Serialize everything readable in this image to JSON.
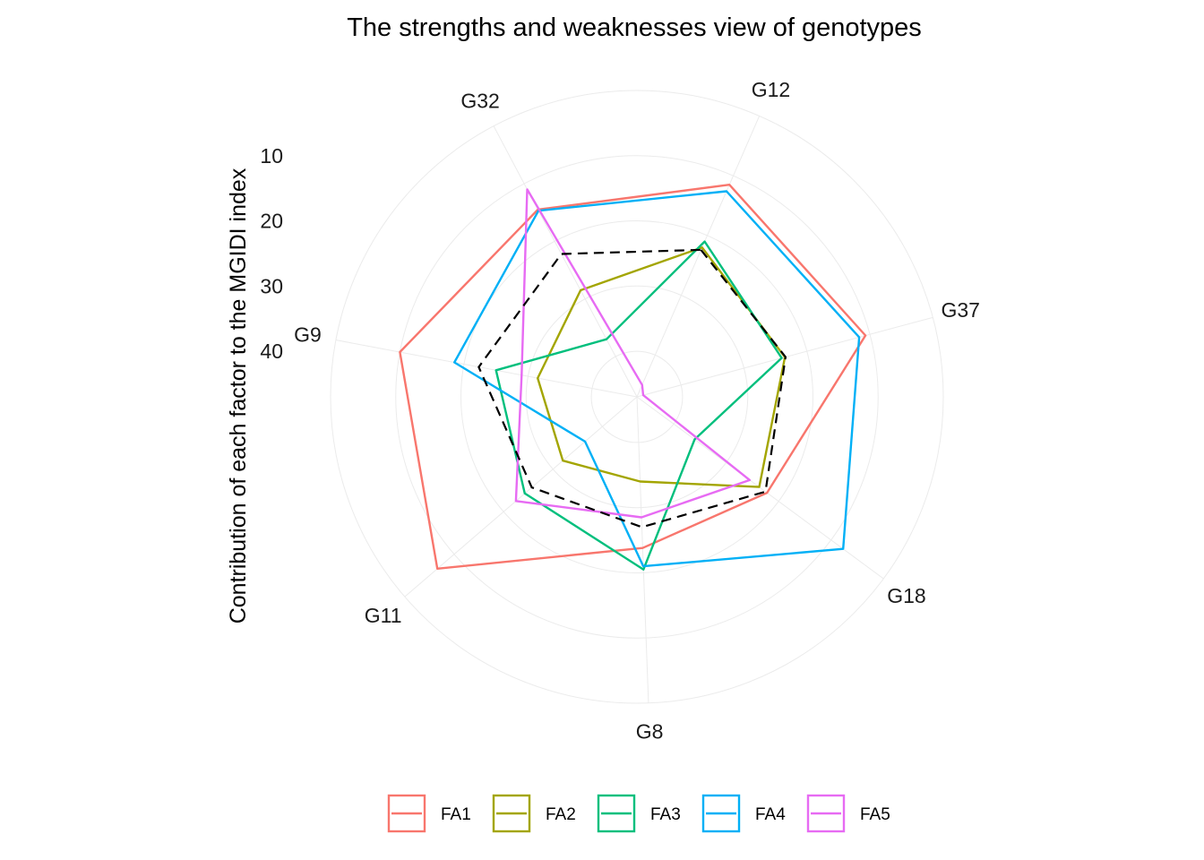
{
  "chart_data": {
    "type": "radar",
    "title": "The strengths and weaknesses view of genotypes",
    "ylabel": "Contribution of each factor to the MGIDI index",
    "categories": [
      "G12",
      "G37",
      "G18",
      "G8",
      "G11",
      "G9",
      "G32"
    ],
    "radial_ticks": [
      "10",
      "20",
      "30",
      "40"
    ],
    "radial_tick_values": [
      10,
      20,
      30,
      40
    ],
    "radial_axis": "reversed",
    "radial_range": [
      0,
      47
    ],
    "legend_position": "bottom",
    "series": [
      {
        "name": "FA1",
        "color": "#F8766D",
        "values": [
          11.5,
          10.7,
          22.2,
          23.8,
          6.6,
          10.0,
          14.5
        ]
      },
      {
        "name": "FA2",
        "color": "#A3A500",
        "values": [
          22.0,
          23.5,
          23.7,
          34.0,
          32.0,
          31.5,
          28.5
        ]
      },
      {
        "name": "FA3",
        "color": "#00BF7D",
        "values": [
          21.0,
          24.0,
          36.0,
          20.5,
          24.3,
          25.0,
          37.0
        ]
      },
      {
        "name": "FA4",
        "color": "#00B0F6",
        "values": [
          12.6,
          11.7,
          7.7,
          21.0,
          36.5,
          18.5,
          14.7
        ]
      },
      {
        "name": "FA5",
        "color": "#E76BF3",
        "values": [
          45.0,
          46.0,
          25.5,
          28.5,
          22.5,
          29.0,
          11.0
        ]
      }
    ],
    "reference_line": {
      "style": "dashed",
      "color": "#000000",
      "values": [
        22.4,
        23.4,
        22.5,
        27.0,
        25.7,
        22.3,
        22.2
      ]
    }
  }
}
